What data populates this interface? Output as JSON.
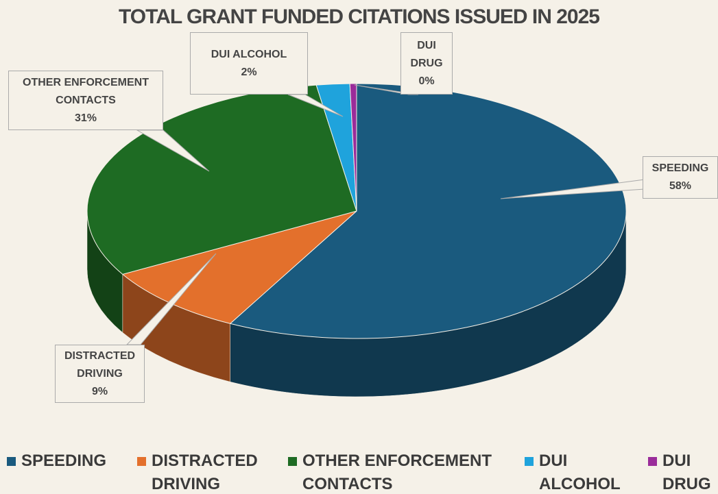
{
  "chart_data": {
    "type": "pie",
    "title": "TOTAL GRANT FUNDED CITATIONS ISSUED IN 2025",
    "categories": [
      "SPEEDING",
      "DISTRACTED DRIVING",
      "OTHER ENFORCEMENT CONTACTS",
      "DUI ALCOHOL",
      "DUI DRUG"
    ],
    "values": [
      58,
      9,
      31,
      2,
      0.4
    ],
    "value_labels": [
      "58%",
      "9%",
      "31%",
      "2%",
      "0%"
    ],
    "colors": [
      "#1a5a7e",
      "#e3702c",
      "#1e6b23",
      "#1fa3dc",
      "#9a2c9a"
    ],
    "legend": "bottom"
  }
}
